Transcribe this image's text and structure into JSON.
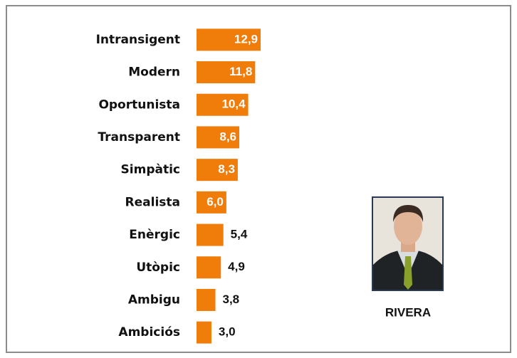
{
  "chart_data": {
    "type": "bar",
    "orientation": "horizontal",
    "categories": [
      "Intransigent",
      "Modern",
      "Oportunista",
      "Transparent",
      "Simpàtic",
      "Realista",
      "Enèrgic",
      "Utòpic",
      "Ambigu",
      "Ambiciós"
    ],
    "values": [
      12.9,
      11.8,
      10.4,
      8.6,
      8.3,
      6.0,
      5.4,
      4.9,
      3.8,
      3.0
    ],
    "value_labels": [
      "12,9",
      "11,8",
      "10,4",
      "8,6",
      "8,3",
      "6,0",
      "5,4",
      "4,9",
      "3,8",
      "3,0"
    ],
    "color": "#f07c0a",
    "photo_caption": "RIVERA"
  }
}
